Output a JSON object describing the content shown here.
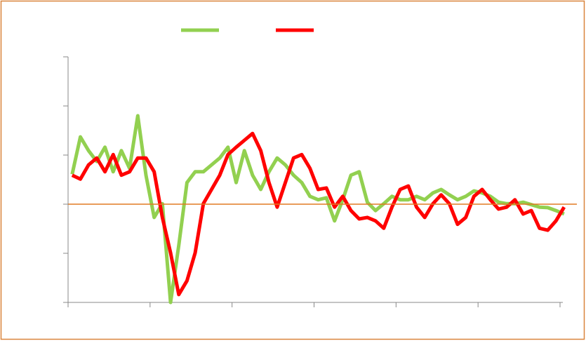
{
  "chart_data": {
    "type": "line",
    "x": [
      1,
      3,
      5,
      7,
      9,
      11,
      13,
      15,
      17,
      19,
      21,
      23,
      25,
      27,
      29,
      31,
      33,
      35,
      37,
      39,
      41,
      43,
      45,
      47,
      49,
      51,
      53,
      55,
      57,
      59,
      61,
      63,
      65,
      67,
      69,
      71,
      73,
      75,
      77,
      79,
      81,
      83,
      85,
      87,
      89,
      91,
      93,
      95,
      97,
      99,
      101,
      103,
      105,
      107,
      109,
      111,
      113,
      115,
      117,
      119,
      121
    ],
    "series": [
      {
        "color": "#92d050",
        "values": [
          0.61,
          1.37,
          1.09,
          0.87,
          1.16,
          0.66,
          1.09,
          0.73,
          1.8,
          0.59,
          -0.27,
          0.01,
          -2,
          -0.84,
          0.44,
          0.66,
          0.66,
          0.8,
          0.94,
          1.16,
          0.44,
          1.09,
          0.59,
          0.3,
          0.66,
          0.94,
          0.8,
          0.59,
          0.44,
          0.16,
          0.09,
          0.13,
          -0.34,
          0.09,
          0.59,
          0.66,
          0.04,
          -0.13,
          0.01,
          0.16,
          0.09,
          0.09,
          0.16,
          0.09,
          0.23,
          0.3,
          0.19,
          0.09,
          0.16,
          0.27,
          0.23,
          0.16,
          0.04,
          0.01,
          0.01,
          0.04,
          -0.01,
          -0.06,
          -0.07,
          -0.13,
          -0.2
        ]
      },
      {
        "color": "#ff0000",
        "values": [
          0.59,
          0.51,
          0.8,
          0.94,
          0.66,
          1.01,
          0.59,
          0.66,
          0.94,
          0.94,
          0.66,
          -0.27,
          -0.99,
          -1.84,
          -1.56,
          -0.99,
          0.01,
          0.3,
          0.59,
          1.01,
          1.16,
          1.3,
          1.44,
          1.09,
          0.44,
          -0.06,
          0.44,
          0.94,
          1.01,
          0.73,
          0.3,
          0.33,
          -0.06,
          0.16,
          -0.13,
          -0.3,
          -0.27,
          -0.34,
          -0.49,
          -0.06,
          0.3,
          0.37,
          -0.06,
          -0.27,
          0.01,
          0.19,
          0.01,
          -0.41,
          -0.27,
          0.16,
          0.3,
          0.09,
          -0.1,
          -0.06,
          0.09,
          -0.2,
          -0.13,
          -0.49,
          -0.53,
          -0.34,
          -0.06
        ]
      }
    ],
    "xlim": [
      0,
      120
    ],
    "xticks": [
      0,
      20,
      40,
      60,
      80,
      100,
      120
    ],
    "ylim": [
      -2,
      3
    ],
    "yticks": [
      -2,
      -1,
      0,
      1,
      2,
      3
    ],
    "hline": 0,
    "hline_color": "#e07b24",
    "legend": "top",
    "border_color": "#d9843b"
  }
}
